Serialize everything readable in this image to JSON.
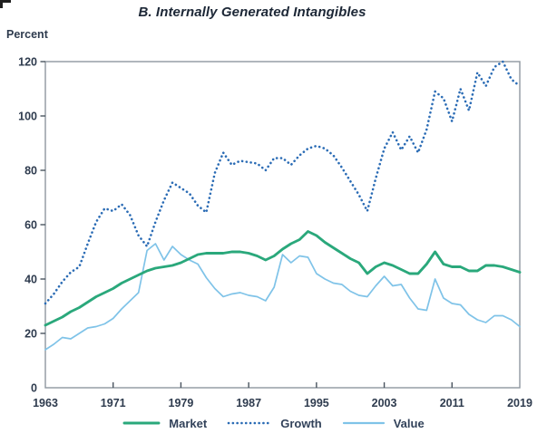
{
  "title": "B. Internally Generated Intangibles",
  "unit_label": "Percent",
  "colors": {
    "market": "#2aa87b",
    "growth": "#2b6cb5",
    "value": "#7fc3e8",
    "title_text": "#1c2736",
    "tick_label_text": "#2e3b4e",
    "legend_text": "#32425a",
    "axis_border": "#8f979f",
    "tick_mark": "#4a545f",
    "background": "#ffffff"
  },
  "legend": {
    "items": [
      {
        "label": "Market",
        "series": "Market"
      },
      {
        "label": "Growth",
        "series": "Growth"
      },
      {
        "label": "Value",
        "series": "Value"
      }
    ]
  },
  "chart_data": {
    "type": "line",
    "title": "B. Internally Generated Intangibles",
    "xlabel": "",
    "ylabel": "Percent",
    "ylim": [
      0,
      120
    ],
    "y_ticks": [
      0,
      20,
      40,
      60,
      80,
      100,
      120
    ],
    "x_ticks": [
      1963,
      1971,
      1979,
      1987,
      1995,
      2003,
      2011,
      2019
    ],
    "grid": false,
    "legend_position": "bottom",
    "x_years": [
      1963,
      1964,
      1965,
      1966,
      1967,
      1968,
      1969,
      1970,
      1971,
      1972,
      1973,
      1974,
      1975,
      1976,
      1977,
      1978,
      1979,
      1980,
      1981,
      1982,
      1983,
      1984,
      1985,
      1986,
      1987,
      1988,
      1989,
      1990,
      1991,
      1992,
      1993,
      1994,
      1995,
      1996,
      1997,
      1998,
      1999,
      2000,
      2001,
      2002,
      2003,
      2004,
      2005,
      2006,
      2007,
      2008,
      2009,
      2010,
      2011,
      2012,
      2013,
      2014,
      2015,
      2016,
      2017,
      2018,
      2019
    ],
    "series": [
      {
        "name": "Growth",
        "style": "dotted",
        "color": "#2b6cb5",
        "line_width": 2.6,
        "values": [
          31,
          34.5,
          39,
          42.5,
          44.5,
          53,
          61,
          66,
          65,
          67.5,
          63.5,
          56,
          52,
          61,
          69,
          75.5,
          73.5,
          71.5,
          67,
          64.5,
          79,
          86.5,
          82,
          83.5,
          83,
          82.5,
          80,
          84.5,
          84.5,
          82,
          85.5,
          88,
          89,
          88,
          85.5,
          81,
          76,
          71,
          65,
          77,
          88,
          94,
          87.5,
          92.5,
          86.5,
          95,
          109,
          106.5,
          98,
          110,
          102,
          116,
          111,
          118,
          120,
          113.5,
          111
        ]
      },
      {
        "name": "Value",
        "style": "solid",
        "color": "#7fc3e8",
        "line_width": 1.7,
        "values": [
          14,
          16,
          18.5,
          18,
          20,
          22,
          22.5,
          23.5,
          25.5,
          29,
          32,
          35,
          50.5,
          53,
          47,
          52,
          49,
          47,
          45.5,
          40.5,
          36.5,
          33.5,
          34.5,
          35,
          34,
          33.5,
          32,
          37,
          49,
          46,
          48.5,
          48,
          42,
          40,
          38.5,
          38,
          35.5,
          34,
          33.5,
          37.5,
          41,
          37.5,
          38,
          33,
          29,
          28.5,
          40,
          33,
          31,
          30.5,
          27,
          25,
          24,
          26.5,
          26.5,
          25,
          22.5
        ]
      },
      {
        "name": "Market",
        "style": "solid",
        "color": "#2aa87b",
        "line_width": 2.9,
        "values": [
          23,
          24.5,
          26,
          28,
          29.5,
          31.5,
          33.5,
          35,
          36.5,
          38.5,
          40,
          41.5,
          43,
          44,
          44.5,
          45,
          46,
          47.5,
          49,
          49.5,
          49.5,
          49.5,
          50,
          50,
          49.5,
          48.5,
          47,
          48.5,
          51,
          53,
          54.5,
          57.5,
          56,
          53.5,
          51.5,
          49.5,
          47.5,
          46,
          42,
          44.5,
          46,
          45,
          43.5,
          42,
          42,
          45.5,
          50,
          45.5,
          44.5,
          44.5,
          43,
          43,
          45,
          45,
          44.5,
          43.5,
          42.5
        ]
      }
    ]
  }
}
